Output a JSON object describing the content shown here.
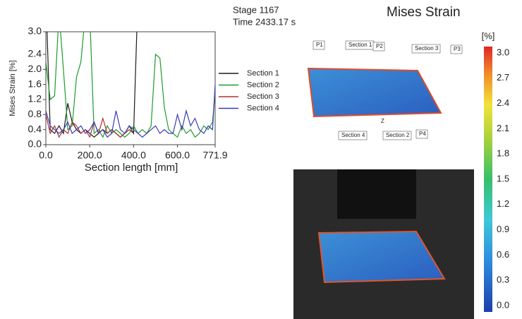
{
  "header": {
    "stage": "Stage 1167",
    "time": "Time  2433.17 s",
    "title": "Mises Strain"
  },
  "chart_data": {
    "type": "line",
    "x_label": "Section length [mm]",
    "y_label": "Mises Strain [%]",
    "x": [
      0,
      20,
      40,
      60,
      80,
      100,
      120,
      140,
      160,
      180,
      200,
      220,
      240,
      260,
      280,
      300,
      320,
      340,
      360,
      380,
      400,
      420,
      440,
      460,
      480,
      500,
      520,
      540,
      560,
      580,
      600,
      620,
      640,
      660,
      680,
      700,
      720,
      740,
      760,
      771.9
    ],
    "xlim": [
      0,
      771.9
    ],
    "xticks": [
      {
        "value": 0,
        "label": "0.0"
      },
      {
        "value": 200,
        "label": "200.0"
      },
      {
        "value": 400,
        "label": "400.0"
      },
      {
        "value": 600,
        "label": "600.0"
      },
      771.9
    ],
    "ylim": [
      0,
      3
    ],
    "yticks": [
      {
        "value": 0,
        "label": "0.0"
      },
      0.4,
      0.8,
      1.2,
      1.6,
      {
        "value": 2,
        "label": "2.0"
      },
      2.4,
      {
        "value": 3,
        "label": "3.0"
      }
    ],
    "grid": false,
    "legend": "right",
    "series": [
      {
        "name": "Section 1",
        "color": "#1a1a1a",
        "values": [
          4.0,
          0.4,
          0.3,
          0.5,
          0.3,
          1.1,
          0.6,
          0.4,
          0.3,
          0.4,
          0.3,
          0.2,
          0.3,
          0.4,
          0.3,
          0.4,
          0.3,
          0.2,
          0.3,
          0.5,
          0.3,
          4.0,
          null,
          null,
          null,
          null,
          null,
          null,
          null,
          null,
          null,
          null,
          null,
          null,
          null,
          null,
          null,
          null,
          null,
          null
        ]
      },
      {
        "name": "Section 2",
        "color": "#1f9a2e",
        "values": [
          2.2,
          1.2,
          1.3,
          3.5,
          2.0,
          0.4,
          0.5,
          1.8,
          2.2,
          3.5,
          3.5,
          0.3,
          0.4,
          0.2,
          0.5,
          0.3,
          0.4,
          0.3,
          0.2,
          0.3,
          0.5,
          0.3,
          0.4,
          0.3,
          0.5,
          2.4,
          2.3,
          1.0,
          0.4,
          0.3,
          0.2,
          0.5,
          0.3,
          0.4,
          0.2,
          0.3,
          0.5,
          0.4,
          0.6,
          1.4
        ]
      },
      {
        "name": "Section 3",
        "color": "#b03030",
        "values": [
          0.8,
          0.3,
          0.5,
          0.2,
          0.4,
          0.3,
          0.6,
          0.5,
          0.3,
          0.4,
          0.2,
          0.6,
          0.3,
          0.7,
          0.3,
          0.4,
          0.3,
          0.2,
          0.3,
          0.4,
          0.3,
          null,
          null,
          null,
          null,
          null,
          null,
          null,
          null,
          null,
          null,
          null,
          null,
          null,
          null,
          null,
          null,
          null,
          null,
          null
        ]
      },
      {
        "name": "Section 4",
        "color": "#3a3ab8",
        "values": [
          0.9,
          0.5,
          0.4,
          0.3,
          0.4,
          0.6,
          0.3,
          0.4,
          0.5,
          0.3,
          0.4,
          0.6,
          0.3,
          0.4,
          0.2,
          0.3,
          0.9,
          0.4,
          0.3,
          0.5,
          0.4,
          0.3,
          0.2,
          0.3,
          0.4,
          0.5,
          0.3,
          0.4,
          0.3,
          0.3,
          0.8,
          0.4,
          0.9,
          0.5,
          0.7,
          0.4,
          0.3,
          0.5,
          0.4,
          1.6
        ]
      }
    ]
  },
  "colorbar": {
    "unit": "[%]",
    "ticks": [
      "3.0",
      "2.7",
      "2.4",
      "2.1",
      "1.8",
      "1.5",
      "1.2",
      "0.9",
      "0.6",
      "0.3",
      "0.0"
    ]
  },
  "specimen_labels": [
    "P1",
    "Section 1",
    "P2",
    "Section 3",
    "P3",
    "Section 4",
    "Section 2",
    "P4",
    "Z"
  ]
}
